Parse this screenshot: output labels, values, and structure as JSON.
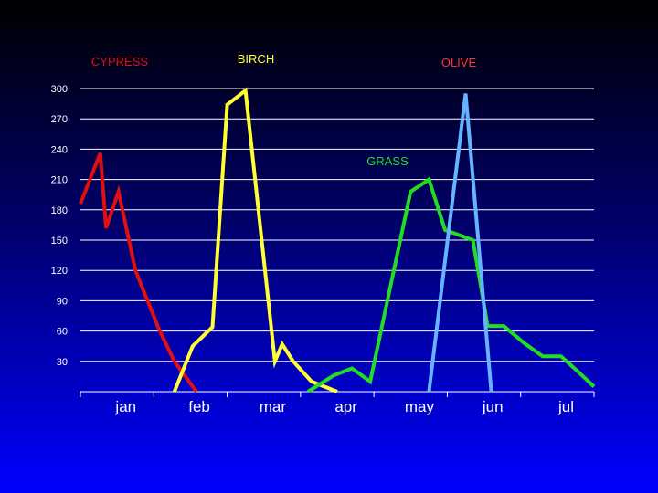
{
  "chart_data": {
    "type": "line",
    "ylim": [
      0,
      300
    ],
    "yticks": [
      "30",
      "60",
      "90",
      "120",
      "150",
      "180",
      "210",
      "240",
      "270",
      "300"
    ],
    "x_categories": [
      "jan",
      "feb",
      "mar",
      "apr",
      "may",
      "jun",
      "jul"
    ],
    "xlim": [
      0,
      7
    ],
    "grid": true,
    "series": [
      {
        "name": "CYPRESS",
        "color": "#e01010",
        "x": [
          0.0,
          0.27,
          0.35,
          0.52,
          0.75,
          1.07,
          1.28,
          1.58
        ],
        "y": [
          186,
          236,
          162,
          198,
          120,
          62,
          30,
          0
        ]
      },
      {
        "name": "BIRCH",
        "color": "#ffff33",
        "x": [
          1.28,
          1.53,
          1.8,
          2.0,
          2.25,
          2.65,
          2.75,
          2.9,
          3.15,
          3.5
        ],
        "y": [
          0,
          45,
          64,
          284,
          298,
          30,
          47,
          30,
          10,
          0
        ]
      },
      {
        "name": "GRASS",
        "color": "#22dd22",
        "x": [
          3.1,
          3.45,
          3.7,
          3.95,
          4.5,
          4.75,
          4.97,
          5.35,
          5.55,
          5.77,
          6.05,
          6.3,
          6.55,
          6.78,
          7.0
        ],
        "y": [
          0,
          16,
          23,
          10,
          198,
          210,
          160,
          150,
          65,
          65,
          48,
          35,
          35,
          20,
          5
        ]
      },
      {
        "name": "OLIVE",
        "color": "#66b3ff",
        "x": [
          4.75,
          5.25,
          5.6
        ],
        "y": [
          0,
          295,
          0
        ]
      }
    ]
  }
}
